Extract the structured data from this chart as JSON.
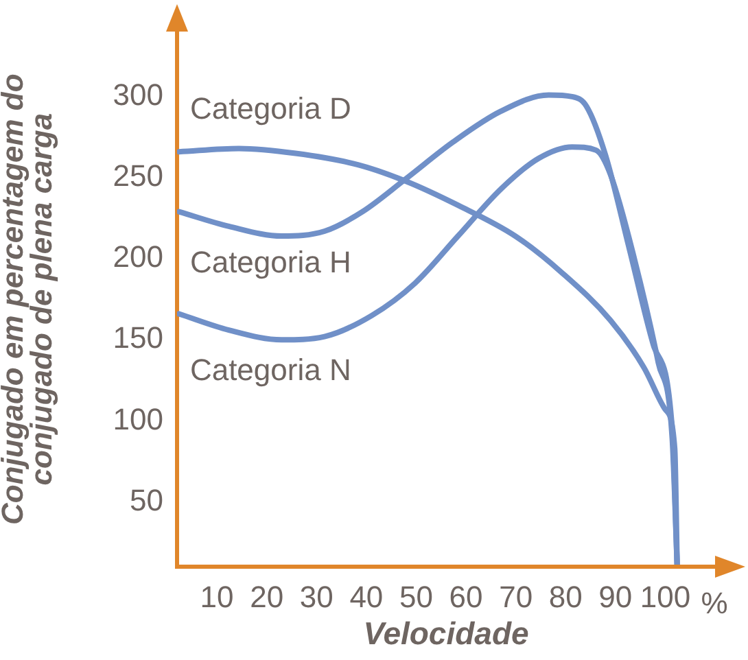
{
  "chart_data": {
    "type": "line",
    "xlabel": "Velocidade",
    "ylabel": "Conjugado em percentagem do conjugado de plena carga",
    "xlim": [
      2,
      110
    ],
    "ylim": [
      10,
      340
    ],
    "xticks": [
      10,
      20,
      30,
      40,
      50,
      60,
      70,
      80,
      90,
      100
    ],
    "yticks": [
      50,
      100,
      150,
      200,
      250,
      300
    ],
    "grid": false,
    "legend": false,
    "marker": "none",
    "line_style": "solid",
    "annotations": [
      "%"
    ],
    "series": [
      {
        "name": "Categoria D",
        "color": "#7090c8",
        "x": [
          2.4,
          14.4,
          25.8,
          38.3,
          47.8,
          58.4,
          69.9,
          79.4,
          89,
          95.7,
          100,
          101.9,
          102.4
        ],
        "values": [
          266,
          268,
          265,
          258,
          248,
          233,
          214,
          191,
          162,
          133,
          107,
          83,
          10
        ]
      },
      {
        "name": "Categoria H",
        "color": "#7090c8",
        "x": [
          2.4,
          12.4,
          23,
          31.6,
          39.2,
          47.8,
          57.4,
          67,
          76.6,
          81.3,
          84.2,
          88,
          92.8,
          97.6,
          101.4,
          102.4
        ],
        "values": [
          229,
          220,
          214,
          217,
          229,
          249,
          272,
          291,
          301,
          300,
          294,
          264,
          206,
          147,
          95,
          10
        ]
      },
      {
        "name": "Categoria N",
        "color": "#7090c8",
        "x": [
          2.4,
          12.4,
          23,
          31.6,
          41.1,
          49.8,
          58.4,
          67,
          74.6,
          81.3,
          86.1,
          89,
          93.8,
          98.6,
          101.4,
          102.4
        ],
        "values": [
          166,
          156,
          150,
          152,
          165,
          185,
          214,
          243,
          262,
          269,
          267,
          252,
          200,
          136,
          89,
          10
        ]
      }
    ]
  }
}
